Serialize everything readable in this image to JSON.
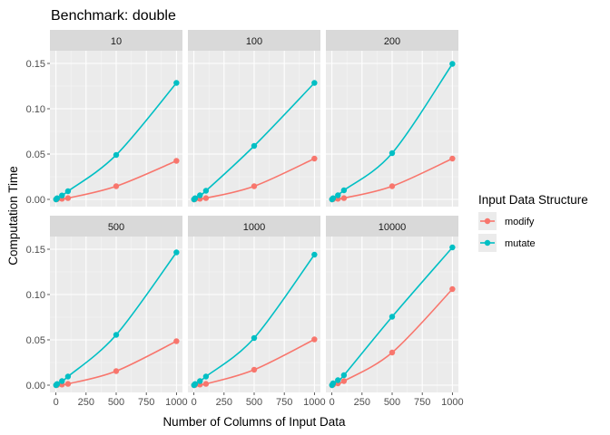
{
  "chart_data": {
    "type": "line",
    "title": "Benchmark: double",
    "xlabel": "Number of Columns of Input Data",
    "ylabel": "Computation Time",
    "xlim": [
      0,
      1000
    ],
    "ylim": [
      0,
      0.16
    ],
    "xticks": [
      0,
      250,
      500,
      750,
      1000
    ],
    "xtick_labels": [
      "0",
      "250",
      "500",
      "750",
      "1000"
    ],
    "yticks": [
      0,
      0.05,
      0.1,
      0.15
    ],
    "ytick_labels": [
      "0.00",
      "0.05",
      "0.10",
      "0.15"
    ],
    "grid": true,
    "legend": {
      "title": "Input Data Structure",
      "position": "right",
      "entries": [
        {
          "name": "modify",
          "color": "#F8766D"
        },
        {
          "name": "mutate",
          "color": "#00BFC4"
        }
      ]
    },
    "x": [
      1,
      10,
      50,
      100,
      500,
      1000
    ],
    "panels": [
      {
        "label": "10",
        "series": [
          {
            "name": "modify",
            "values": [
              0.0,
              0.0003,
              0.0007,
              0.0014,
              0.0145,
              0.0425
            ]
          },
          {
            "name": "mutate",
            "values": [
              0.0,
              0.0013,
              0.0043,
              0.009,
              0.049,
              0.1285
            ]
          }
        ]
      },
      {
        "label": "100",
        "series": [
          {
            "name": "modify",
            "values": [
              0.0,
              0.0003,
              0.0007,
              0.0014,
              0.0145,
              0.045
            ]
          },
          {
            "name": "mutate",
            "values": [
              0.0,
              0.0013,
              0.0045,
              0.0095,
              0.059,
              0.1285
            ]
          }
        ]
      },
      {
        "label": "200",
        "series": [
          {
            "name": "modify",
            "values": [
              0.0,
              0.0003,
              0.0007,
              0.0014,
              0.0145,
              0.045
            ]
          },
          {
            "name": "mutate",
            "values": [
              0.0,
              0.0013,
              0.0045,
              0.01,
              0.051,
              0.1495
            ]
          }
        ]
      },
      {
        "label": "500",
        "series": [
          {
            "name": "modify",
            "values": [
              0.0,
              0.0003,
              0.0007,
              0.0014,
              0.0155,
              0.0485
            ]
          },
          {
            "name": "mutate",
            "values": [
              0.0,
              0.0013,
              0.0045,
              0.0095,
              0.0555,
              0.1465
            ]
          }
        ]
      },
      {
        "label": "1000",
        "series": [
          {
            "name": "modify",
            "values": [
              0.0,
              0.0003,
              0.0007,
              0.0014,
              0.017,
              0.0505
            ]
          },
          {
            "name": "mutate",
            "values": [
              0.0,
              0.0013,
              0.0045,
              0.0095,
              0.052,
              0.144
            ]
          }
        ]
      },
      {
        "label": "10000",
        "series": [
          {
            "name": "modify",
            "values": [
              0.0,
              0.0006,
              0.002,
              0.0045,
              0.036,
              0.106
            ]
          },
          {
            "name": "mutate",
            "values": [
              0.0,
              0.002,
              0.0055,
              0.011,
              0.0755,
              0.152
            ]
          }
        ]
      }
    ]
  }
}
